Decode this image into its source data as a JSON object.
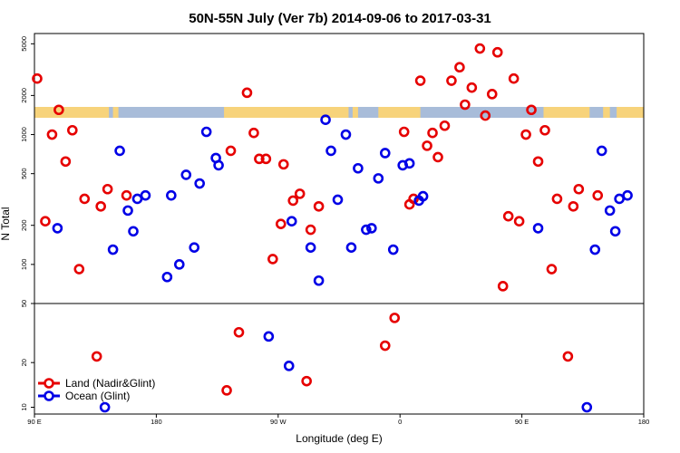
{
  "chart_data": {
    "type": "scatter",
    "title": "50N-55N July (Ver 7b)   2014-09-06 to 2017-03-31",
    "xlabel": "Longitude (deg E)",
    "ylabel": "N Total",
    "x_ticks": [
      {
        "value": 90,
        "label": "90 E"
      },
      {
        "value": 180,
        "label": "180"
      },
      {
        "value": 270,
        "label": "90 W"
      },
      {
        "value": 360,
        "label": "0"
      },
      {
        "value": 450,
        "label": "90 E"
      },
      {
        "value": 540,
        "label": "180"
      }
    ],
    "xlim": [
      90,
      540
    ],
    "upper_panel": {
      "scale": "log",
      "ylim": [
        50,
        6000
      ],
      "y_ticks": [
        {
          "value": 100,
          "label": "100"
        },
        {
          "value": 200,
          "label": "200"
        },
        {
          "value": 500,
          "label": "500"
        },
        {
          "value": 1000,
          "label": "1000"
        },
        {
          "value": 2000,
          "label": "2000"
        },
        {
          "value": 5000,
          "label": "5000"
        }
      ]
    },
    "lower_panel": {
      "scale": "log",
      "ylim": [
        9,
        50
      ],
      "y_ticks": [
        {
          "value": 10,
          "label": "10"
        },
        {
          "value": 20,
          "label": "20"
        },
        {
          "value": 50,
          "label": "50"
        }
      ]
    },
    "land_mask_colors": {
      "land": "#f7d37b",
      "ocean": "#a8bcd9"
    },
    "land_mask_land_ranges": [
      [
        90,
        145
      ],
      [
        148,
        152
      ],
      [
        230,
        322
      ],
      [
        325,
        329
      ],
      [
        344,
        375
      ],
      [
        466,
        500
      ],
      [
        510,
        515
      ],
      [
        520,
        540
      ]
    ],
    "legend": {
      "position": "bottom-left"
    },
    "series": [
      {
        "name": "Land (Nadir&Glint)",
        "color": "#e60000",
        "points": [
          {
            "x": 92,
            "y": 2700
          },
          {
            "x": 98,
            "y": 215
          },
          {
            "x": 103,
            "y": 1000
          },
          {
            "x": 108,
            "y": 1550
          },
          {
            "x": 113,
            "y": 620
          },
          {
            "x": 118,
            "y": 1080
          },
          {
            "x": 123,
            "y": 92
          },
          {
            "x": 127,
            "y": 320
          },
          {
            "x": 136,
            "y": 22
          },
          {
            "x": 139,
            "y": 280
          },
          {
            "x": 144,
            "y": 380
          },
          {
            "x": 158,
            "y": 340
          },
          {
            "x": 232,
            "y": 13
          },
          {
            "x": 235,
            "y": 750
          },
          {
            "x": 241,
            "y": 32
          },
          {
            "x": 247,
            "y": 2100
          },
          {
            "x": 252,
            "y": 1030
          },
          {
            "x": 256,
            "y": 650
          },
          {
            "x": 261,
            "y": 650
          },
          {
            "x": 266,
            "y": 110
          },
          {
            "x": 272,
            "y": 205
          },
          {
            "x": 274,
            "y": 590
          },
          {
            "x": 281,
            "y": 310
          },
          {
            "x": 286,
            "y": 350
          },
          {
            "x": 291,
            "y": 15
          },
          {
            "x": 294,
            "y": 185
          },
          {
            "x": 300,
            "y": 280
          },
          {
            "x": 349,
            "y": 26
          },
          {
            "x": 356,
            "y": 40
          },
          {
            "x": 363,
            "y": 1050
          },
          {
            "x": 367,
            "y": 290
          },
          {
            "x": 370,
            "y": 320
          },
          {
            "x": 375,
            "y": 2600
          },
          {
            "x": 380,
            "y": 820
          },
          {
            "x": 384,
            "y": 1030
          },
          {
            "x": 388,
            "y": 670
          },
          {
            "x": 393,
            "y": 1170
          },
          {
            "x": 398,
            "y": 2600
          },
          {
            "x": 404,
            "y": 3300
          },
          {
            "x": 408,
            "y": 1700
          },
          {
            "x": 413,
            "y": 2300
          },
          {
            "x": 419,
            "y": 4600
          },
          {
            "x": 423,
            "y": 1400
          },
          {
            "x": 428,
            "y": 2050
          },
          {
            "x": 432,
            "y": 4300
          },
          {
            "x": 436,
            "y": 68
          },
          {
            "x": 440,
            "y": 235
          },
          {
            "x": 444,
            "y": 2700
          },
          {
            "x": 448,
            "y": 215
          },
          {
            "x": 453,
            "y": 1000
          },
          {
            "x": 457,
            "y": 1550
          },
          {
            "x": 462,
            "y": 620
          },
          {
            "x": 467,
            "y": 1080
          },
          {
            "x": 472,
            "y": 92
          },
          {
            "x": 476,
            "y": 320
          },
          {
            "x": 484,
            "y": 22
          },
          {
            "x": 488,
            "y": 280
          },
          {
            "x": 492,
            "y": 380
          },
          {
            "x": 506,
            "y": 340
          }
        ]
      },
      {
        "name": "Ocean (Glint)",
        "color": "#0000e6",
        "points": [
          {
            "x": 107,
            "y": 190
          },
          {
            "x": 142,
            "y": 10
          },
          {
            "x": 148,
            "y": 130
          },
          {
            "x": 153,
            "y": 750
          },
          {
            "x": 159,
            "y": 260
          },
          {
            "x": 163,
            "y": 180
          },
          {
            "x": 166,
            "y": 320
          },
          {
            "x": 172,
            "y": 340
          },
          {
            "x": 188,
            "y": 80
          },
          {
            "x": 191,
            "y": 340
          },
          {
            "x": 197,
            "y": 100
          },
          {
            "x": 202,
            "y": 490
          },
          {
            "x": 208,
            "y": 135
          },
          {
            "x": 212,
            "y": 420
          },
          {
            "x": 217,
            "y": 1050
          },
          {
            "x": 224,
            "y": 660
          },
          {
            "x": 226,
            "y": 580
          },
          {
            "x": 263,
            "y": 30
          },
          {
            "x": 278,
            "y": 19
          },
          {
            "x": 280,
            "y": 215
          },
          {
            "x": 294,
            "y": 135
          },
          {
            "x": 300,
            "y": 75
          },
          {
            "x": 305,
            "y": 1300
          },
          {
            "x": 309,
            "y": 750
          },
          {
            "x": 314,
            "y": 315
          },
          {
            "x": 320,
            "y": 1000
          },
          {
            "x": 324,
            "y": 135
          },
          {
            "x": 329,
            "y": 550
          },
          {
            "x": 335,
            "y": 185
          },
          {
            "x": 339,
            "y": 190
          },
          {
            "x": 344,
            "y": 460
          },
          {
            "x": 349,
            "y": 720
          },
          {
            "x": 355,
            "y": 130
          },
          {
            "x": 362,
            "y": 580
          },
          {
            "x": 367,
            "y": 600
          },
          {
            "x": 374,
            "y": 310
          },
          {
            "x": 377,
            "y": 335
          },
          {
            "x": 462,
            "y": 190
          },
          {
            "x": 498,
            "y": 10
          },
          {
            "x": 504,
            "y": 130
          },
          {
            "x": 509,
            "y": 750
          },
          {
            "x": 515,
            "y": 260
          },
          {
            "x": 519,
            "y": 180
          },
          {
            "x": 522,
            "y": 320
          },
          {
            "x": 528,
            "y": 340
          }
        ]
      }
    ]
  }
}
